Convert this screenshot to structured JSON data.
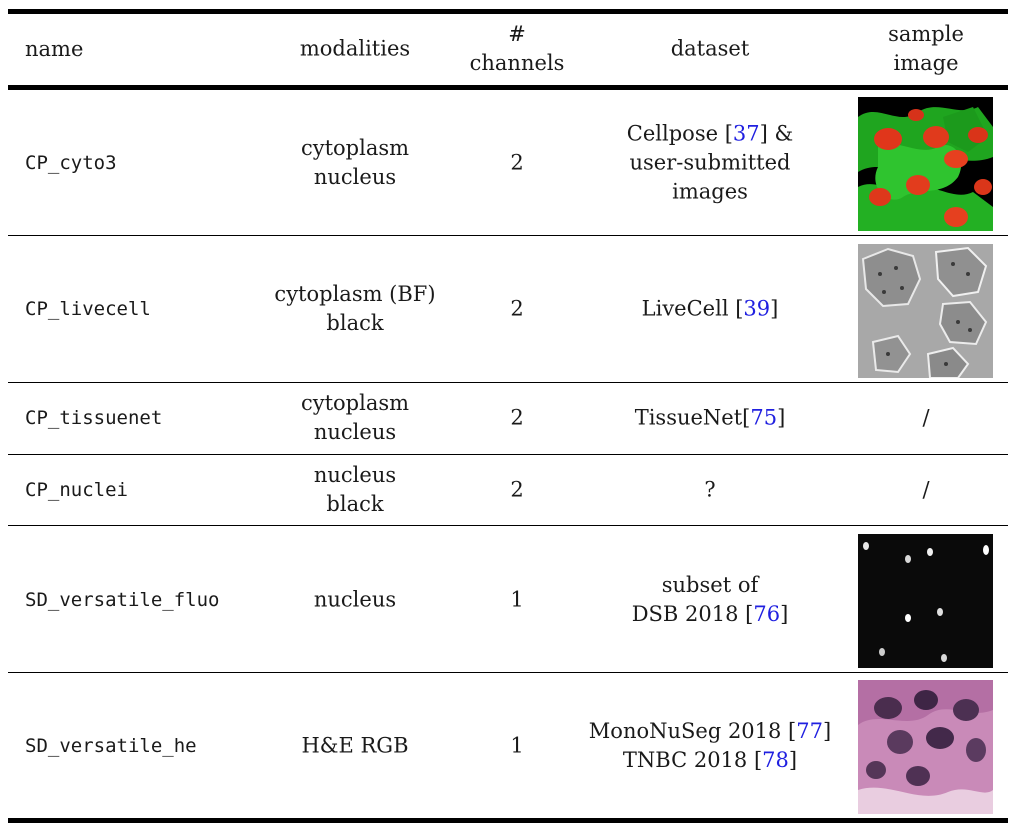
{
  "headers": {
    "name": "name",
    "modalities": "modalities",
    "channels_line1": "#",
    "channels_line2": "channels",
    "dataset": "dataset",
    "sample_line1": "sample",
    "sample_line2": "image"
  },
  "rows": [
    {
      "name": "CP_cyto3",
      "modalities": [
        "cytoplasm",
        "nucleus"
      ],
      "channels": "2",
      "dataset_line1_pre": "Cellpose [",
      "dataset_line1_cite": "37",
      "dataset_line1_post": "] &",
      "dataset_line2": "user-submitted",
      "dataset_line3": "images",
      "sample": "image"
    },
    {
      "name": "CP_livecell",
      "modalities": [
        "cytoplasm (BF)",
        "black"
      ],
      "channels": "2",
      "dataset_pre": "LiveCell [",
      "dataset_cite": "39",
      "dataset_post": "]",
      "sample": "image"
    },
    {
      "name": "CP_tissuenet",
      "modalities": [
        "cytoplasm",
        "nucleus"
      ],
      "channels": "2",
      "dataset_pre": "TissueNet[",
      "dataset_cite": "75",
      "dataset_post": "]",
      "sample": "/"
    },
    {
      "name": "CP_nuclei",
      "modalities": [
        "nucleus",
        "black"
      ],
      "channels": "2",
      "dataset": "?",
      "sample": "/"
    },
    {
      "name": "SD_versatile_fluo",
      "modalities": [
        "nucleus"
      ],
      "channels": "1",
      "dataset_line1": "subset of",
      "dataset_line2_pre": "DSB 2018 [",
      "dataset_line2_cite": "76",
      "dataset_line2_post": "]",
      "sample": "image"
    },
    {
      "name": "SD_versatile_he",
      "modalities": [
        "H&E RGB"
      ],
      "channels": "1",
      "dataset_line1_pre": "MonoNuSeg 2018 [",
      "dataset_line1_cite": "77",
      "dataset_line1_post": "]",
      "dataset_line2_pre": "TNBC 2018 [",
      "dataset_line2_cite": "78",
      "dataset_line2_post": "]",
      "sample": "image"
    }
  ],
  "colors": {
    "cite": "#2020e0",
    "rule": "#000000"
  }
}
